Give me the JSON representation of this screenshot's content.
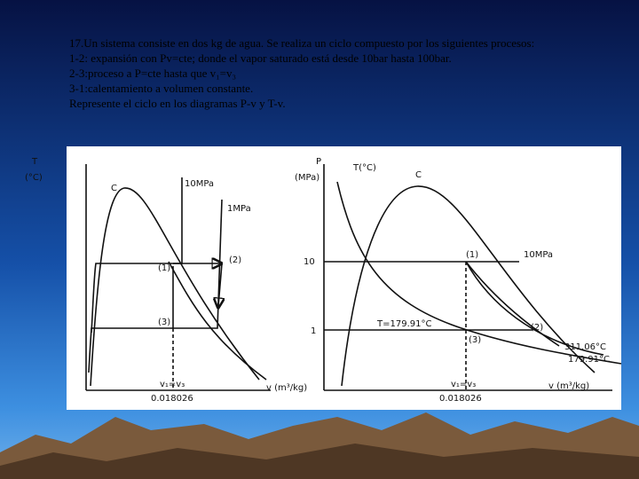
{
  "header": {
    "lines": [
      "17.Un sistema consiste en dos kg de agua. Se realiza un ciclo compuesto por los siguientes procesos:",
      "1-2: expansión con Pv=cte; donde el vapor saturado está desde 10bar hasta 100bar.",
      "2-3:proceso a P=cte  hasta que v₁=v₃",
      "3-1:calentamiento a volumen constante.",
      "Represente el ciclo en los diagramas P-v y T-v."
    ]
  },
  "left_diagram": {
    "y_axis": "T",
    "y_unit": "(°C)",
    "dome": "C",
    "isobar_high": "10MPa",
    "isobar_low": "1MPa",
    "point_1": "(1)",
    "point_2": "(2)",
    "point_3": "(3)",
    "v_equal": "v₁=v₃",
    "v_value": "0.018026",
    "x_axis": "v (m³/kg)"
  },
  "right_diagram": {
    "y_axis": "P",
    "y_unit": "(MPa)",
    "t_label": "T(°C)",
    "dome": "C",
    "p_high": "10",
    "p_low": "1",
    "point_1": "(1)",
    "isobar": "10MPa",
    "t_sat": "T=179.91°C",
    "point_2": "(2)",
    "point_3": "(3)",
    "t_high": "311.06°C",
    "t_low": "179.91°C",
    "v_equal": "v₁=v₃",
    "v_value": "0.018026",
    "x_axis": "v (m³/kg)"
  }
}
